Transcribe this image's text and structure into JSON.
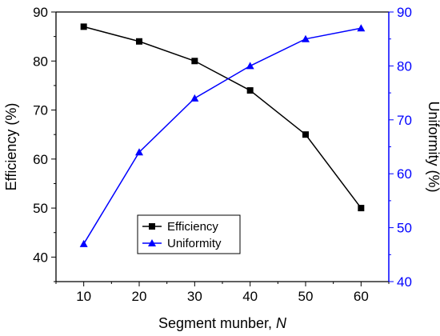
{
  "chart_data": {
    "type": "line",
    "title": "",
    "xlabel": "Segment munber, ",
    "xlabel_italic": "N",
    "ylabel_left": "Efficiency (%)",
    "ylabel_right": "Uniformity (%)",
    "xlim": [
      5,
      65
    ],
    "ylim_left": [
      35,
      90
    ],
    "ylim_right": [
      40,
      90
    ],
    "x_ticks": [
      10,
      20,
      30,
      40,
      50,
      60
    ],
    "y_ticks_left": [
      40,
      50,
      60,
      70,
      80,
      90
    ],
    "y_ticks_right": [
      40,
      50,
      60,
      70,
      80,
      90
    ],
    "x": [
      10,
      20,
      30,
      40,
      50,
      60
    ],
    "series": [
      {
        "name": "Efficiency",
        "axis": "left",
        "marker": "square",
        "color": "#000000",
        "values": [
          87,
          84,
          80,
          74,
          65,
          50
        ]
      },
      {
        "name": "Uniformity",
        "axis": "right",
        "marker": "triangle",
        "color": "#0000ff",
        "values": [
          47,
          64,
          74,
          80,
          85,
          87
        ]
      }
    ],
    "left_axis_color": "#000000",
    "right_axis_color": "#0000ff",
    "grid": false,
    "legend_position": "lower-center"
  }
}
